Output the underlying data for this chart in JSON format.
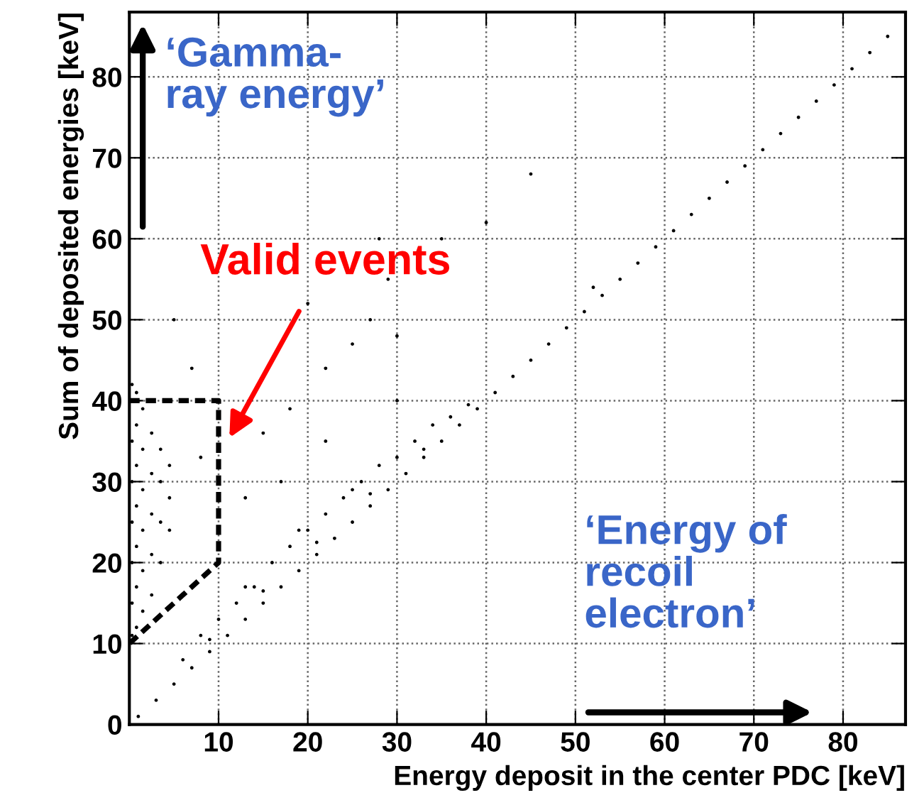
{
  "chart_data": {
    "type": "scatter",
    "xlabel": "Energy deposit in the center PDC [keV]",
    "ylabel": "Sum of deposited energies [keV]",
    "xlim": [
      0,
      87
    ],
    "ylim": [
      0,
      88
    ],
    "xticks": [
      10,
      20,
      30,
      40,
      50,
      60,
      70,
      80
    ],
    "yticks": [
      0,
      10,
      20,
      30,
      40,
      50,
      60,
      70,
      80
    ],
    "grid": true,
    "annotations": [
      "Valid events",
      "‘Gamma-\nray energy’",
      "‘Energy of\nrecoil\nelectron’"
    ],
    "series": [
      {
        "color": "#000000",
        "x": [
          1,
          3,
          5,
          7,
          9,
          11,
          13,
          15,
          17,
          19,
          21,
          23,
          25,
          27,
          29,
          31,
          33,
          35,
          37,
          39,
          41,
          43,
          45,
          47,
          49,
          51,
          53,
          55,
          57,
          59,
          61,
          63,
          65,
          67,
          69,
          71,
          73,
          75,
          77,
          79,
          81,
          83,
          85,
          6,
          8,
          10,
          12,
          14,
          16,
          18,
          20,
          22,
          24,
          26,
          28,
          30,
          32,
          34,
          36,
          38,
          9,
          15,
          21,
          27,
          33,
          13,
          19,
          25,
          0.3,
          0.3,
          0.3,
          0.3,
          0.3,
          0.3,
          0.3,
          0.8,
          0.8,
          0.8,
          0.8,
          0.8,
          0.8,
          0.8,
          1.5,
          1.5,
          1.5,
          1.5,
          1.5,
          1.5,
          2.5,
          2.5,
          2.5,
          2.5,
          2.5,
          3.5,
          3.5,
          3.5,
          3.5,
          4.5,
          4.5,
          4.5,
          7,
          15,
          18,
          22,
          25,
          27,
          29,
          30,
          28,
          35,
          40,
          20,
          5,
          13,
          17,
          22,
          8,
          30,
          45,
          52
        ],
        "values": [
          1,
          3,
          5,
          7,
          9,
          11,
          13,
          15,
          17,
          19,
          21,
          23,
          25,
          27,
          29,
          31,
          33,
          35,
          37,
          39,
          41,
          43,
          45,
          47,
          49,
          51,
          53,
          55,
          57,
          59,
          61,
          63,
          65,
          67,
          69,
          71,
          73,
          75,
          77,
          79,
          81,
          83,
          85,
          8,
          11,
          13,
          15,
          17,
          20,
          22,
          24,
          26,
          28,
          30,
          32,
          33,
          35,
          37,
          38,
          39.5,
          10.5,
          16.5,
          22.5,
          28.5,
          34,
          17,
          24,
          29,
          11,
          15,
          20,
          25,
          30,
          35,
          42,
          12,
          17,
          22,
          27,
          32,
          37,
          41,
          14,
          19,
          24,
          29,
          34,
          39,
          16,
          21,
          26,
          31,
          36,
          20,
          25,
          30,
          34,
          24,
          28,
          32,
          44,
          36,
          39,
          44,
          47,
          50,
          55,
          48,
          60,
          60,
          62,
          52,
          50,
          28,
          30,
          35,
          33,
          40,
          68,
          54
        ]
      },
      {
        "type": "line",
        "line_style": "dashed",
        "color": "#000000",
        "x": [
          0,
          10,
          10,
          0
        ],
        "values": [
          40,
          40,
          20,
          10
        ]
      }
    ]
  }
}
